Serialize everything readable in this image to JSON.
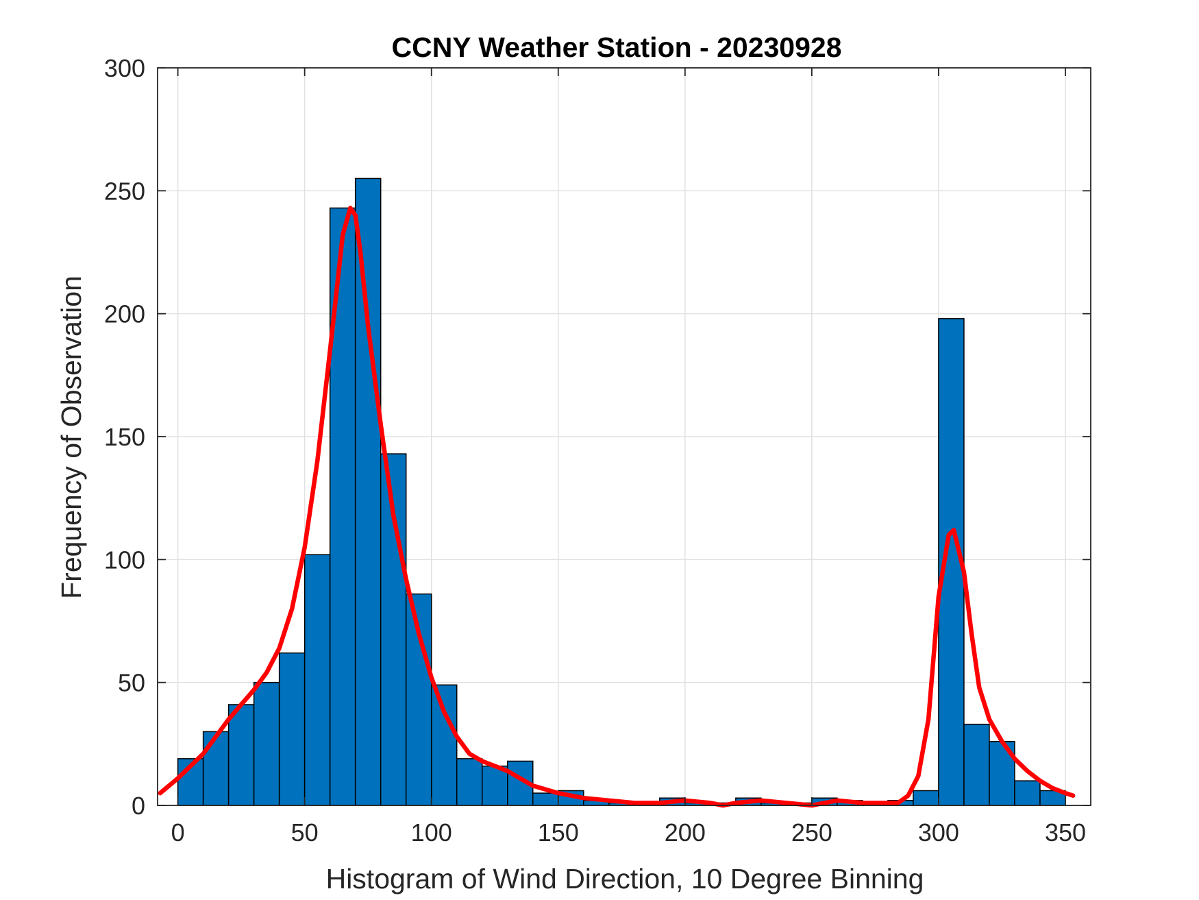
{
  "chart_data": {
    "type": "bar",
    "title": "CCNY Weather Station - 20230928",
    "xlabel": "Histogram of Wind Direction, 10 Degree Binning",
    "ylabel": "Frequency of Observation",
    "xlim": [
      -8,
      360
    ],
    "ylim": [
      0,
      300
    ],
    "xticks": [
      0,
      50,
      100,
      150,
      200,
      250,
      300,
      350
    ],
    "yticks": [
      0,
      50,
      100,
      150,
      200,
      250,
      300
    ],
    "grid": true,
    "bin_width": 10,
    "bins": [
      {
        "start": 0,
        "value": 19
      },
      {
        "start": 10,
        "value": 30
      },
      {
        "start": 20,
        "value": 41
      },
      {
        "start": 30,
        "value": 50
      },
      {
        "start": 40,
        "value": 62
      },
      {
        "start": 50,
        "value": 102
      },
      {
        "start": 60,
        "value": 243
      },
      {
        "start": 70,
        "value": 255
      },
      {
        "start": 80,
        "value": 143
      },
      {
        "start": 90,
        "value": 86
      },
      {
        "start": 100,
        "value": 49
      },
      {
        "start": 110,
        "value": 19
      },
      {
        "start": 120,
        "value": 16
      },
      {
        "start": 130,
        "value": 18
      },
      {
        "start": 140,
        "value": 5
      },
      {
        "start": 150,
        "value": 6
      },
      {
        "start": 160,
        "value": 2
      },
      {
        "start": 170,
        "value": 1
      },
      {
        "start": 180,
        "value": 1
      },
      {
        "start": 190,
        "value": 3
      },
      {
        "start": 200,
        "value": 1
      },
      {
        "start": 210,
        "value": 1
      },
      {
        "start": 220,
        "value": 3
      },
      {
        "start": 230,
        "value": 1
      },
      {
        "start": 240,
        "value": 1
      },
      {
        "start": 250,
        "value": 3
      },
      {
        "start": 260,
        "value": 2
      },
      {
        "start": 270,
        "value": 1
      },
      {
        "start": 280,
        "value": 2
      },
      {
        "start": 290,
        "value": 6
      },
      {
        "start": 300,
        "value": 198
      },
      {
        "start": 310,
        "value": 33
      },
      {
        "start": 320,
        "value": 26
      },
      {
        "start": 330,
        "value": 10
      },
      {
        "start": 340,
        "value": 6
      }
    ],
    "fit_curve": {
      "name": "density fit",
      "x": [
        -7,
        0,
        5,
        10,
        15,
        20,
        25,
        30,
        35,
        40,
        45,
        50,
        55,
        60,
        65,
        68,
        70,
        72,
        75,
        80,
        85,
        90,
        95,
        100,
        105,
        110,
        115,
        120,
        130,
        140,
        150,
        160,
        170,
        180,
        190,
        200,
        210,
        215,
        220,
        230,
        240,
        250,
        260,
        270,
        280,
        284,
        288,
        292,
        296,
        300,
        304,
        306,
        310,
        313,
        316,
        320,
        325,
        330,
        335,
        340,
        345,
        350,
        353
      ],
      "y": [
        5,
        11,
        16,
        21,
        28,
        35,
        41,
        47,
        54,
        64,
        80,
        105,
        140,
        185,
        232,
        243,
        240,
        225,
        195,
        155,
        118,
        92,
        70,
        52,
        38,
        28,
        21,
        18,
        14,
        8,
        5,
        3,
        2,
        1,
        1,
        2,
        1,
        0,
        1,
        2,
        1,
        0,
        2,
        1,
        1,
        1,
        4,
        12,
        35,
        85,
        110,
        112,
        95,
        70,
        48,
        35,
        26,
        19,
        14,
        10,
        7,
        5,
        4
      ]
    },
    "colors": {
      "bar_fill": "#0072BD",
      "bar_edge": "#000000",
      "fit_line": "#FF0000",
      "grid": "#E1E1E1",
      "axis": "#262626"
    }
  }
}
